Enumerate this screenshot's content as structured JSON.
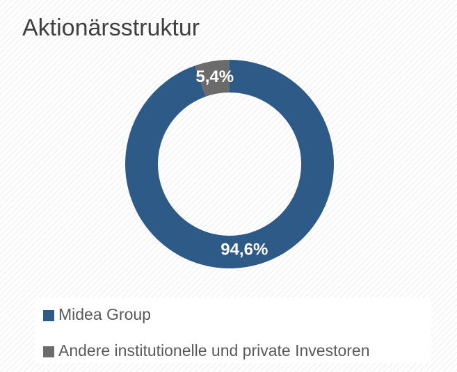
{
  "chart_data": {
    "type": "donut",
    "title": "Aktionärsstruktur",
    "categories": [
      "Midea Group",
      "Andere institutionelle und private Investoren"
    ],
    "values": [
      94.6,
      5.4
    ],
    "value_labels": [
      "94,6%",
      "5,4%"
    ],
    "colors": [
      "#2e5a88",
      "#6b6b6b"
    ],
    "legend": "bottom"
  }
}
